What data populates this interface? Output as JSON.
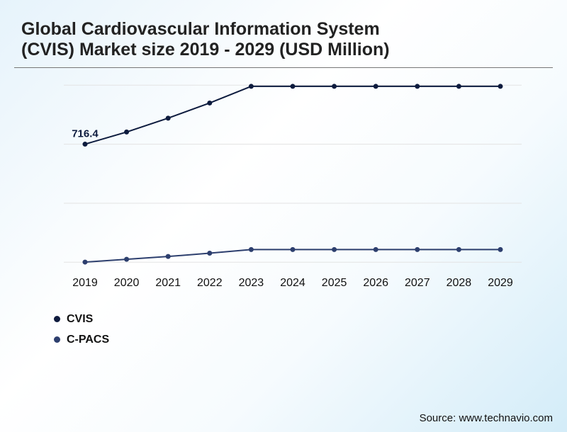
{
  "title_lines": [
    "Global Cardiovascular Information System",
    "(CVIS) Market size 2019 - 2029 (USD Million)"
  ],
  "source": "Source: www.technavio.com",
  "chart_data": {
    "type": "line",
    "title": "Global Cardiovascular Information System (CVIS) Market size 2019 - 2029 (USD Million)",
    "categories": [
      "2019",
      "2020",
      "2021",
      "2022",
      "2023",
      "2024",
      "2025",
      "2026",
      "2027",
      "2028",
      "2029"
    ],
    "ylim": [
      0,
      1074
    ],
    "grid": true,
    "legend": "bottom-left",
    "series": [
      {
        "name": "CVIS",
        "color": "#0d1b3e",
        "values": [
          716.4,
          790,
          874,
          966,
          1067,
          1067,
          1067,
          1067,
          1067,
          1067,
          1067
        ]
      },
      {
        "name": "C-PACS",
        "color": "#2d3f6e",
        "values": [
          1,
          18,
          35,
          55,
          77,
          77,
          77,
          77,
          77,
          77,
          77
        ]
      }
    ],
    "annotations": [
      {
        "series": "CVIS",
        "category": "2019",
        "text": "716.4"
      }
    ]
  }
}
